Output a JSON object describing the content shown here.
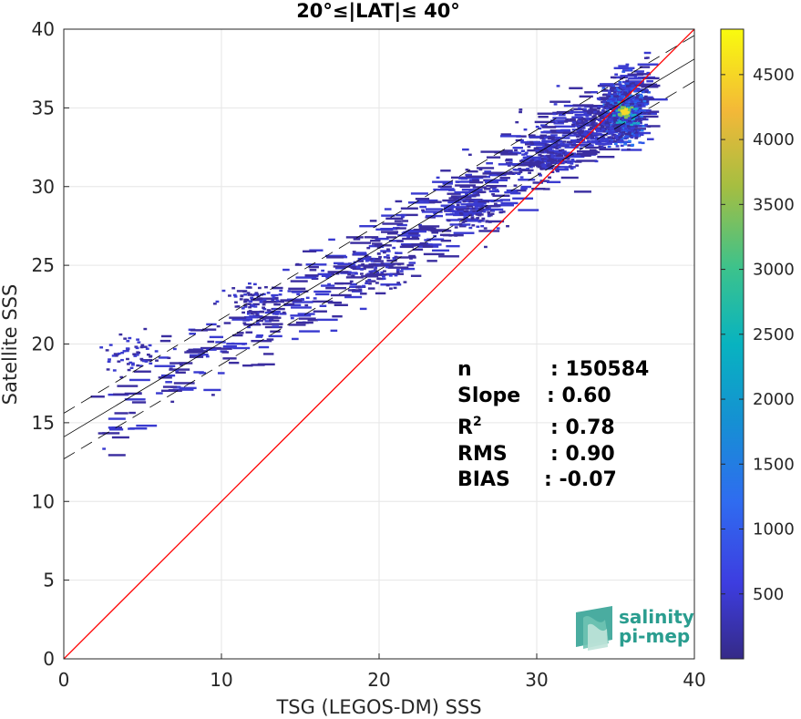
{
  "chart_data": {
    "type": "heatmap",
    "title": "20°≤|LAT|≤ 40°",
    "xlabel": "TSG (LEGOS-DM) SSS",
    "ylabel": "Satellite SSS",
    "xlim": [
      0,
      40
    ],
    "ylim": [
      0,
      40
    ],
    "xticks": [
      "0",
      "10",
      "20",
      "30",
      "40"
    ],
    "yticks": [
      "0",
      "5",
      "10",
      "15",
      "20",
      "25",
      "30",
      "35",
      "40"
    ],
    "grid": true,
    "colorbar": {
      "colormap": "parula",
      "range": [
        0,
        4850
      ],
      "ticks": [
        "500",
        "1000",
        "1500",
        "2000",
        "2500",
        "3000",
        "3500",
        "4000",
        "4500"
      ]
    },
    "reference_line": {
      "slope": 1,
      "intercept": 0,
      "color": "#ff0000"
    },
    "regression_line": {
      "slope": 0.6,
      "intercept": 14.1
    },
    "confidence_band": {
      "upper_intercept": 15.6,
      "lower_intercept": 12.7
    },
    "density_clusters": [
      {
        "x": 35.5,
        "y": 34.8,
        "peak": 4800
      },
      {
        "x": 34.2,
        "y": 34.0,
        "peak": 1500
      },
      {
        "x": 30.5,
        "y": 32.0,
        "peak": 800
      },
      {
        "x": 26.0,
        "y": 28.5,
        "peak": 500
      },
      {
        "x": 20.0,
        "y": 25.0,
        "peak": 400
      },
      {
        "x": 12.0,
        "y": 22.7,
        "peak": 500
      },
      {
        "x": 4.0,
        "y": 19.5,
        "peak": 300
      }
    ]
  },
  "stats": {
    "n_label": "n",
    "n_value": ": 150584",
    "slope_label": "Slope",
    "slope_value": ": 0.60",
    "r2_label": "R",
    "r2_sup": "2",
    "r2_value": ": 0.78",
    "rms_label": "RMS",
    "rms_value": ": 0.90",
    "bias_label": "BIAS",
    "bias_value": ": -0.07"
  },
  "logo": {
    "line1": "salinity",
    "line2": "pi-mep",
    "color": "#2a9d8f"
  }
}
